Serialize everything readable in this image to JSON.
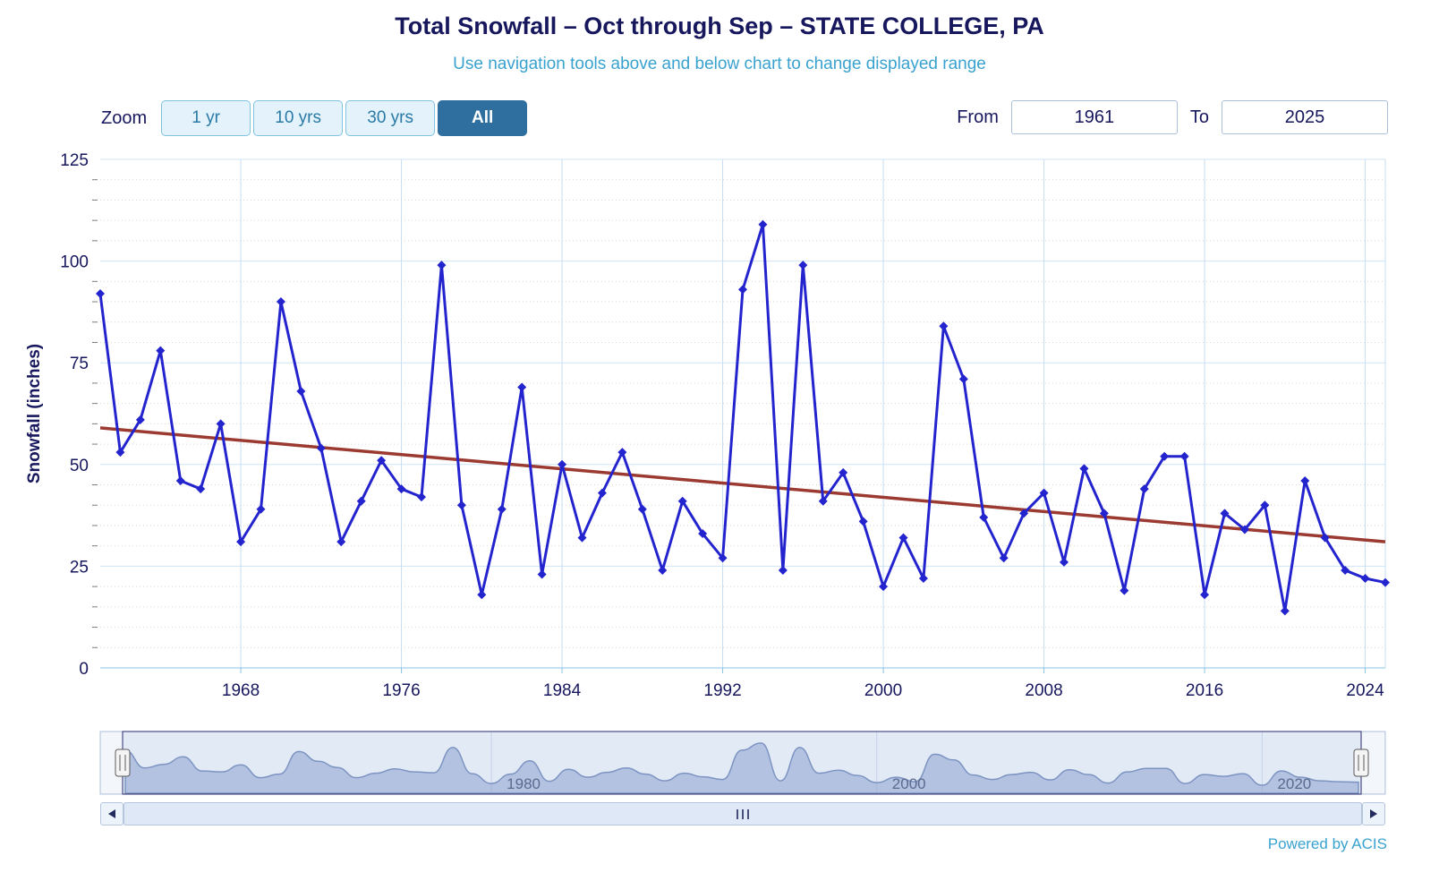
{
  "header": {
    "title": "Total Snowfall – Oct through Sep – STATE COLLEGE, PA",
    "subtitle": "Use navigation tools above and below chart to change displayed range"
  },
  "toolbar": {
    "zoom_label": "Zoom",
    "buttons": [
      {
        "label": "1 yr",
        "selected": false
      },
      {
        "label": "10 yrs",
        "selected": false
      },
      {
        "label": "30 yrs",
        "selected": false
      },
      {
        "label": "All",
        "selected": true
      }
    ],
    "from_label": "From",
    "from_value": "1961",
    "to_label": "To",
    "to_value": "2025"
  },
  "chart_data": {
    "type": "line",
    "title": "Total Snowfall – Oct through Sep – STATE COLLEGE, PA",
    "xlabel": "",
    "ylabel": "Snowfall (inches)",
    "ylim": [
      0,
      125
    ],
    "yticks": [
      0,
      25,
      50,
      75,
      100,
      125
    ],
    "minor_tick_step": 5,
    "xticks": [
      1968,
      1976,
      1984,
      1992,
      2000,
      2008,
      2016,
      2024
    ],
    "grid": true,
    "legend_position": "none",
    "x": [
      1961,
      1962,
      1963,
      1964,
      1965,
      1966,
      1967,
      1968,
      1969,
      1970,
      1971,
      1972,
      1973,
      1974,
      1975,
      1976,
      1977,
      1978,
      1979,
      1980,
      1981,
      1982,
      1983,
      1984,
      1985,
      1986,
      1987,
      1988,
      1989,
      1990,
      1991,
      1992,
      1993,
      1994,
      1995,
      1996,
      1997,
      1998,
      1999,
      2000,
      2001,
      2002,
      2003,
      2004,
      2005,
      2006,
      2007,
      2008,
      2009,
      2010,
      2011,
      2012,
      2013,
      2014,
      2015,
      2016,
      2017,
      2018,
      2019,
      2020,
      2021,
      2022,
      2023,
      2024,
      2025
    ],
    "series": [
      {
        "name": "Total Snowfall",
        "type": "line",
        "marker": "diamond",
        "color": "#2424cf",
        "values": [
          92,
          53,
          61,
          78,
          46,
          44,
          60,
          31,
          39,
          90,
          68,
          54,
          31,
          41,
          51,
          44,
          42,
          99,
          40,
          18,
          39,
          69,
          23,
          50,
          32,
          43,
          53,
          39,
          24,
          41,
          33,
          27,
          93,
          109,
          24,
          99,
          41,
          48,
          36,
          20,
          32,
          22,
          84,
          71,
          37,
          27,
          38,
          43,
          26,
          49,
          38,
          19,
          44,
          52,
          52,
          18,
          38,
          34,
          40,
          14,
          46,
          32,
          24,
          22,
          21
        ]
      },
      {
        "name": "Trend",
        "type": "trend",
        "color": "#9b3a31",
        "start": 59,
        "end": 31
      }
    ]
  },
  "navigator": {
    "years": [
      1980,
      2000,
      2020
    ],
    "labels": [
      "1980",
      "2000",
      "2020"
    ]
  },
  "footer": {
    "credit": "Powered by ACIS"
  },
  "colors": {
    "title": "#17175e",
    "subtitle": "#39a2cf",
    "series_line": "#2424cf",
    "trend_line": "#9b3a31",
    "selected_button_bg": "#2e6f9f",
    "button_bg": "#e3f2fb",
    "button_border": "#7fc2e1",
    "grid_major": "#cfe4f6",
    "grid_vertical": "#c6def2",
    "navigator_fill": "#8ca4ce"
  }
}
